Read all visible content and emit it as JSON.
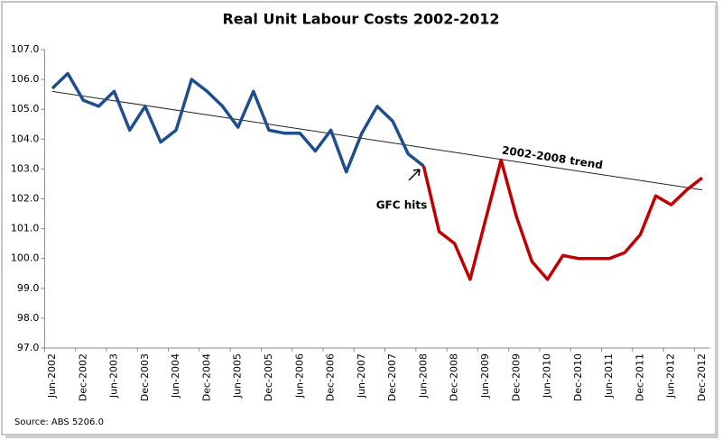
{
  "chart_data": {
    "type": "line",
    "title": "Real Unit Labour Costs 2002-2012",
    "categories": [
      "Jun-2002",
      null,
      "Dec-2002",
      null,
      "Jun-2003",
      null,
      "Dec-2003",
      null,
      "Jun-2004",
      null,
      "Dec-2004",
      null,
      "Jun-2005",
      null,
      "Dec-2005",
      null,
      "Jun-2006",
      null,
      "Dec-2006",
      null,
      "Jun-2007",
      null,
      "Dec-2007",
      null,
      "Jun-2008",
      null,
      "Dec-2008",
      null,
      "Jun-2009",
      null,
      "Dec-2009",
      null,
      "Jun-2010",
      null,
      "Dec-2010",
      null,
      "Jun-2011",
      null,
      "Dec-2011",
      null,
      "Jun-2012",
      null,
      "Dec-2012"
    ],
    "series": [
      {
        "color": "#1f4e8c",
        "values": [
          105.7,
          106.2,
          105.3,
          105.1,
          105.6,
          104.3,
          105.1,
          103.9,
          104.3,
          106.0,
          105.6,
          105.1,
          104.4,
          105.6,
          104.3,
          104.2,
          104.2,
          103.6,
          104.3,
          102.9,
          104.2,
          105.1,
          104.6,
          103.5,
          103.1,
          null,
          null,
          null,
          null,
          null,
          null,
          null,
          null,
          null,
          null,
          null,
          null,
          null,
          null,
          null,
          null,
          null,
          null
        ]
      },
      {
        "color": "#c00000",
        "values": [
          null,
          null,
          null,
          null,
          null,
          null,
          null,
          null,
          null,
          null,
          null,
          null,
          null,
          null,
          null,
          null,
          null,
          null,
          null,
          null,
          null,
          null,
          null,
          null,
          103.1,
          100.9,
          100.5,
          99.3,
          101.3,
          103.3,
          101.4,
          99.9,
          99.3,
          100.1,
          100.0,
          100.0,
          100.0,
          100.2,
          100.8,
          102.1,
          101.8,
          102.3,
          102.7
        ]
      }
    ],
    "trend": {
      "label": "2002-2008 trend",
      "from": 105.6,
      "to": 102.3,
      "color": "#222222"
    },
    "annotations": [
      "GFC hits"
    ],
    "source": "Source: ABS 5206.0",
    "ylim": [
      97,
      107
    ],
    "yticks": [
      {
        "value": 97,
        "label": "97.0"
      },
      {
        "value": 98,
        "label": "98.0"
      },
      {
        "value": 99,
        "label": "99.0"
      },
      {
        "value": 100,
        "label": "100.0"
      },
      {
        "value": 101,
        "label": "101.0"
      },
      {
        "value": 102,
        "label": "102.0"
      },
      {
        "value": 103,
        "label": "103.0"
      },
      {
        "value": 104,
        "label": "104.0"
      },
      {
        "value": 105,
        "label": "105.0"
      },
      {
        "value": 106,
        "label": "106.0"
      },
      {
        "value": 107,
        "label": "107.0"
      }
    ],
    "grid": false
  }
}
